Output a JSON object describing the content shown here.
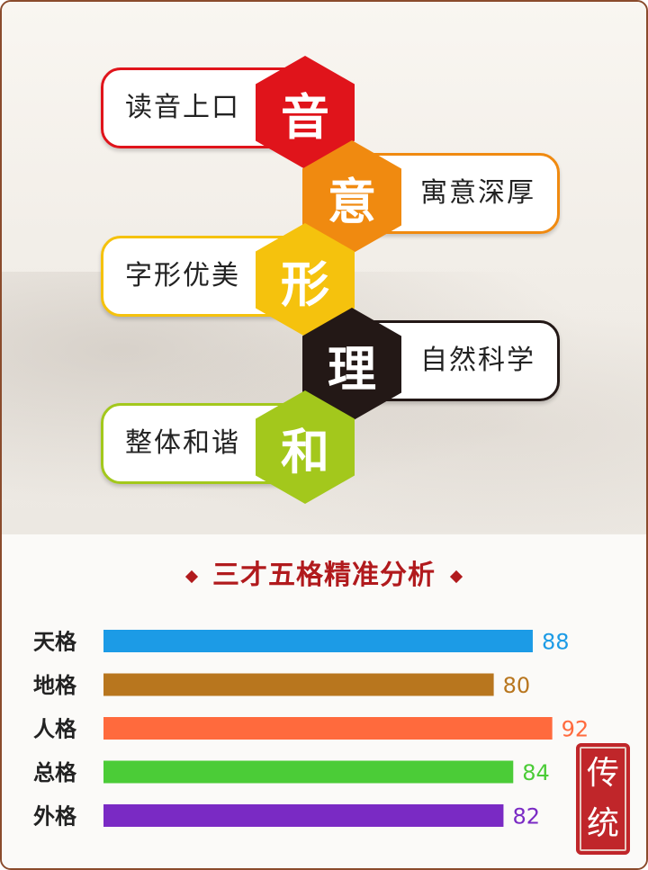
{
  "principles": [
    {
      "char": "音",
      "label": "读音上口",
      "color": "#e0141b"
    },
    {
      "char": "意",
      "label": "寓意深厚",
      "color": "#f08a10"
    },
    {
      "char": "形",
      "label": "字形优美",
      "color": "#f5c20d"
    },
    {
      "char": "理",
      "label": "自然科学",
      "color": "#231816"
    },
    {
      "char": "和",
      "label": "整体和谐",
      "color": "#a3c81c"
    }
  ],
  "section_title": "三才五格精准分析",
  "seal_text": [
    "传",
    "统"
  ],
  "chart_data": {
    "type": "bar",
    "orientation": "horizontal",
    "categories": [
      "天格",
      "地格",
      "人格",
      "总格",
      "外格"
    ],
    "values": [
      88,
      80,
      92,
      84,
      82
    ],
    "colors": [
      "#1c9be6",
      "#b8761e",
      "#ff6a3d",
      "#4bcc37",
      "#7a2ac4"
    ],
    "xlim": [
      0,
      100
    ],
    "grid": false,
    "title": "三才五格精准分析"
  }
}
